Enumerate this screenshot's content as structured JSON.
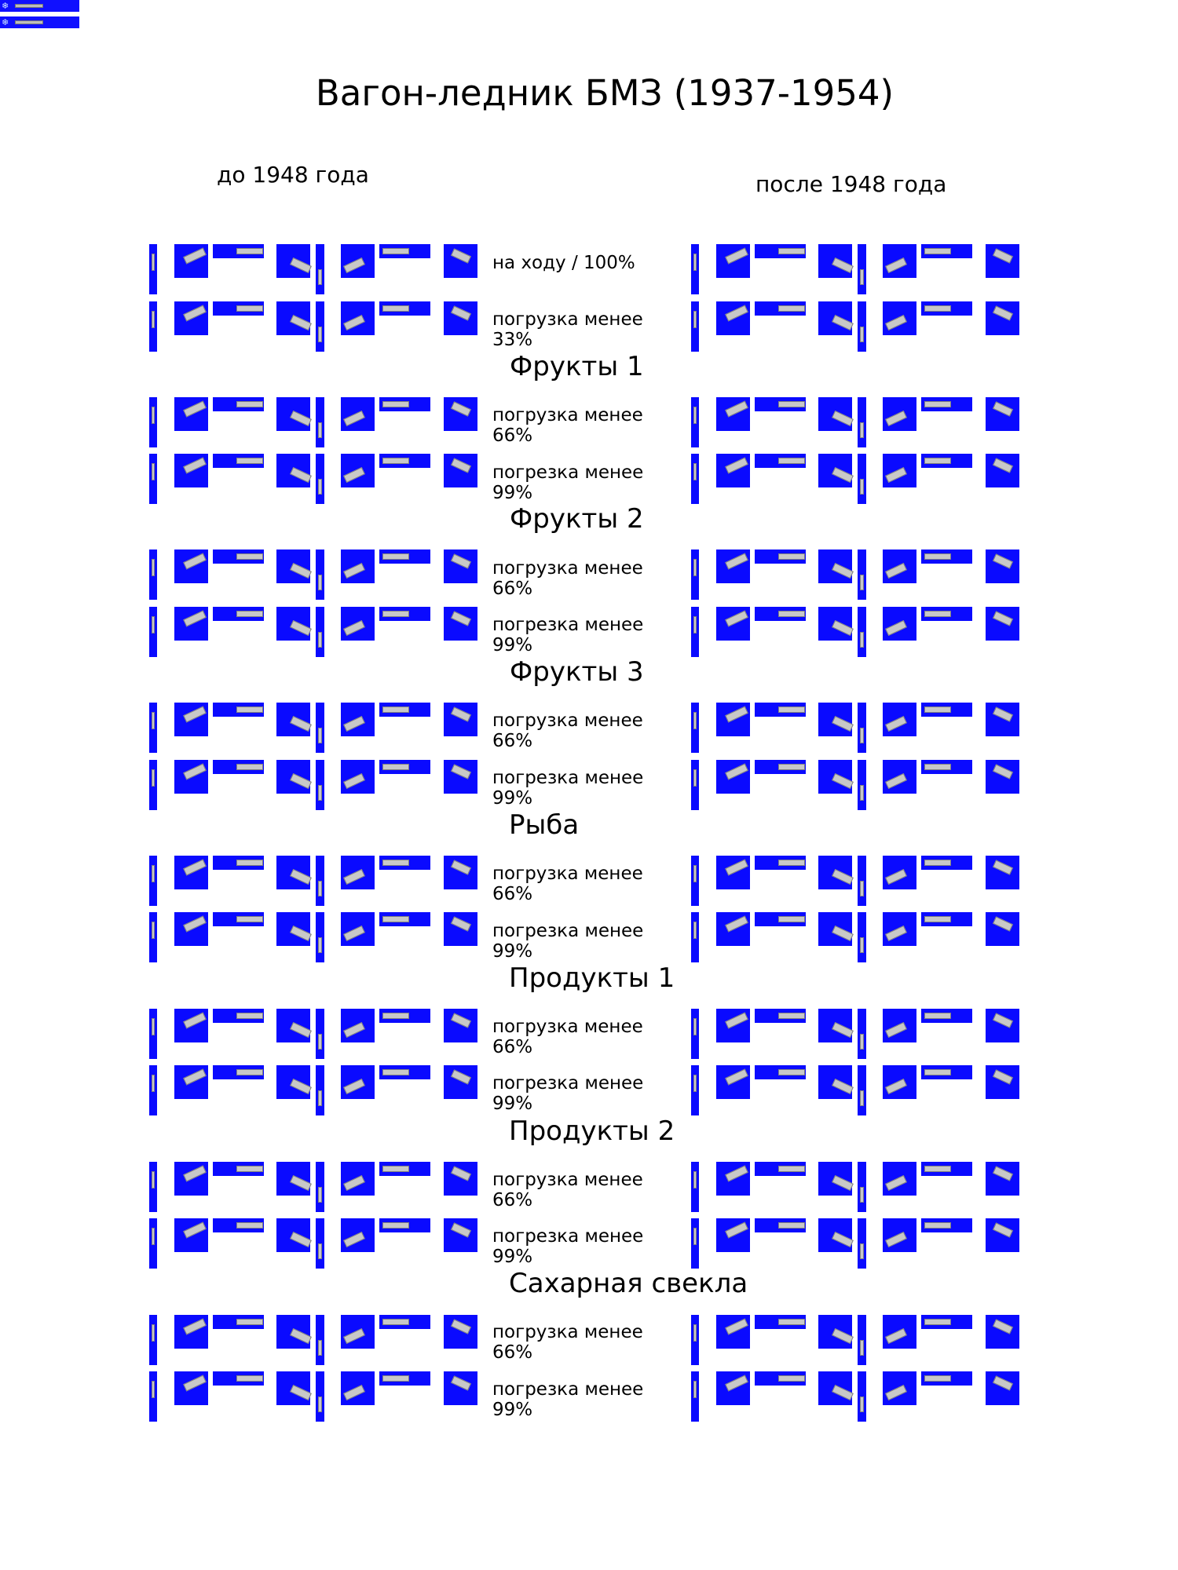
{
  "title": "Вагон-ледник БМЗ (1937-1954)",
  "columns": {
    "left": "до 1948 года",
    "right": "после 1948 года"
  },
  "rows": [
    {
      "label": "на ходу / 100%"
    },
    {
      "label": "погрузка менее 33%"
    },
    {
      "label": "погрузка менее 66%"
    },
    {
      "label": "погрезка менее 99%"
    },
    {
      "label": "погрузка менее 66%"
    },
    {
      "label": "погрезка менее 99%"
    },
    {
      "label": "погрузка менее 66%"
    },
    {
      "label": "погрезка менее 99%"
    },
    {
      "label": "погрузка менее 66%"
    },
    {
      "label": "погрезка менее 99%"
    },
    {
      "label": "погрузка менее 66%"
    },
    {
      "label": "погрезка менее 99%"
    },
    {
      "label": "погрузка менее 66%"
    },
    {
      "label": "погрезка менее 99%"
    },
    {
      "label": "погрузка менее 66%"
    },
    {
      "label": "погрезка менее 99%"
    }
  ],
  "sections": [
    {
      "title": "Фрукты 1"
    },
    {
      "title": "Фрукты 2"
    },
    {
      "title": "Фрукты 3"
    },
    {
      "title": "Рыба"
    },
    {
      "title": "Продукты 1"
    },
    {
      "title": "Продукты 2"
    },
    {
      "title": "Сахарная свекла"
    }
  ],
  "icons": {
    "palette": "snowflake-icon"
  },
  "colors": {
    "sprite_background": "#0a0aff",
    "page_background": "#ffffff"
  }
}
